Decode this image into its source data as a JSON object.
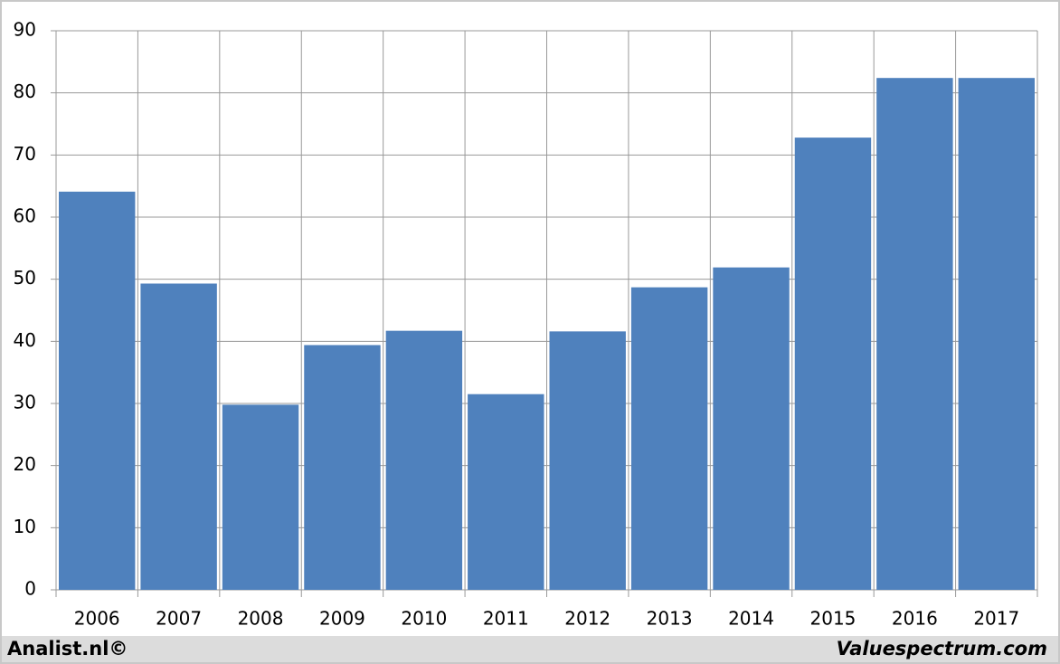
{
  "chart_data": {
    "type": "bar",
    "categories": [
      "2006",
      "2007",
      "2008",
      "2009",
      "2010",
      "2011",
      "2012",
      "2013",
      "2014",
      "2015",
      "2016",
      "2017"
    ],
    "values": [
      64.1,
      49.3,
      29.8,
      39.4,
      41.7,
      31.5,
      41.6,
      48.7,
      51.9,
      72.8,
      82.4,
      82.4
    ],
    "color": "#4f81bd",
    "ylim": [
      0,
      90
    ],
    "yticks": [
      0,
      10,
      20,
      30,
      40,
      50,
      60,
      70,
      80,
      90
    ],
    "grid": true,
    "annotations": [
      "Analist.nl©",
      "Valuespectrum.com"
    ]
  }
}
